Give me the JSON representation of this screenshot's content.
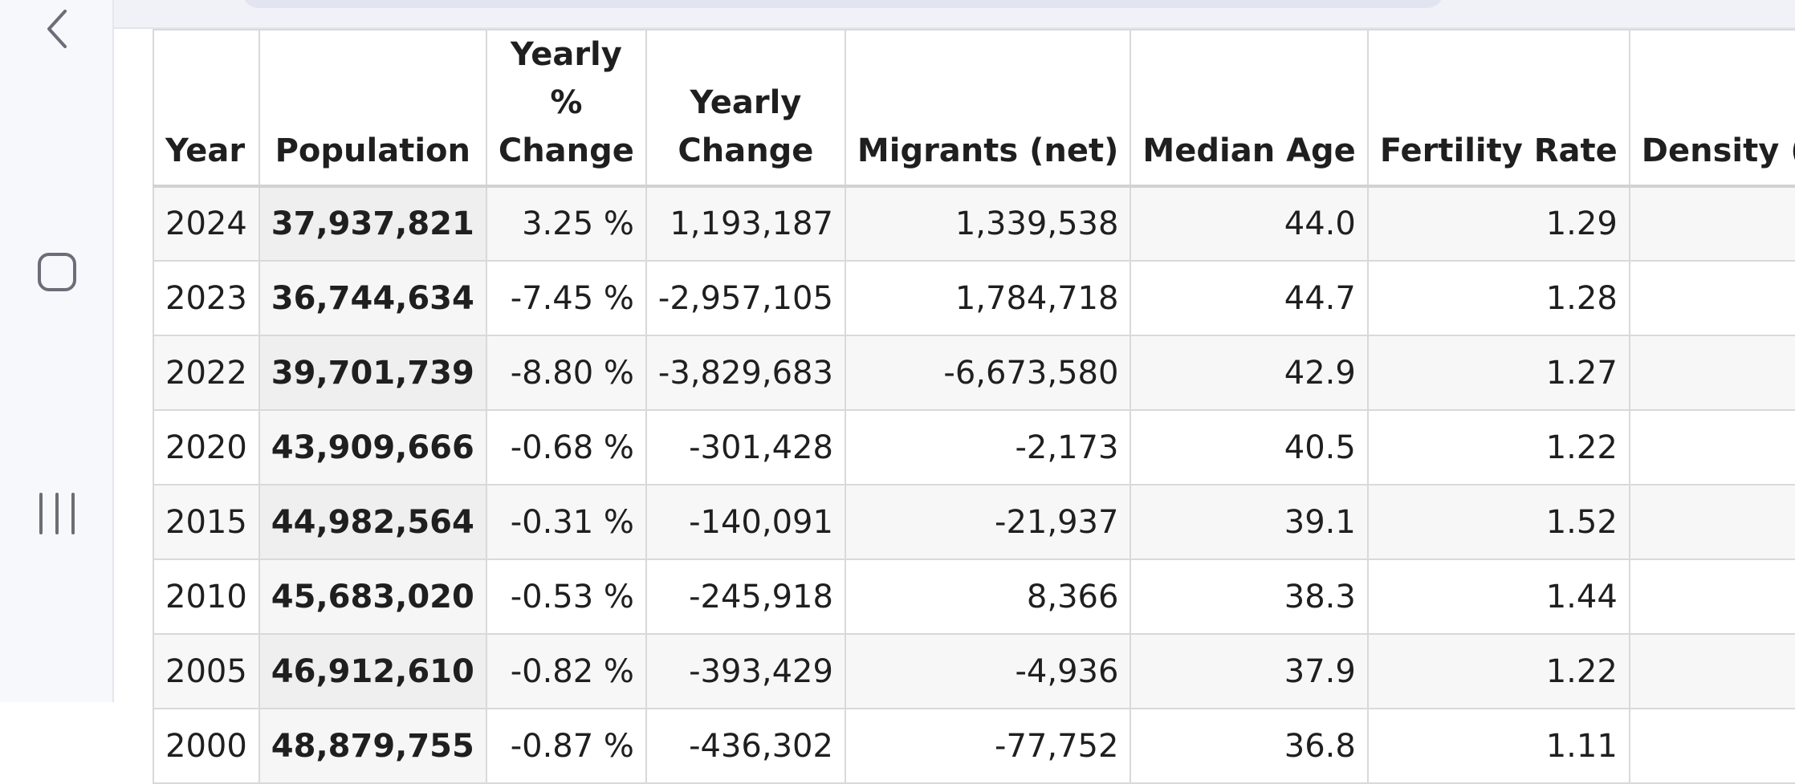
{
  "navigation": {
    "back_icon": "chevron-left-icon",
    "home_icon": "rounded-square-icon",
    "recents_icon": "three-bars-icon"
  },
  "table": {
    "columns": [
      "Year",
      "Population",
      "Yearly % Change",
      "Yearly Change",
      "Migrants (net)",
      "Median Age",
      "Fertility Rate",
      "Density (P/K"
    ],
    "rows": [
      [
        "2024",
        "37,937,821",
        "3.25 %",
        "1,193,187",
        "1,339,538",
        "44.0",
        "1.29",
        ""
      ],
      [
        "2023",
        "36,744,634",
        "-7.45 %",
        "-2,957,105",
        "1,784,718",
        "44.7",
        "1.28",
        ""
      ],
      [
        "2022",
        "39,701,739",
        "-8.80 %",
        "-3,829,683",
        "-6,673,580",
        "42.9",
        "1.27",
        ""
      ],
      [
        "2020",
        "43,909,666",
        "-0.68 %",
        "-301,428",
        "-2,173",
        "40.5",
        "1.22",
        ""
      ],
      [
        "2015",
        "44,982,564",
        "-0.31 %",
        "-140,091",
        "-21,937",
        "39.1",
        "1.52",
        ""
      ],
      [
        "2010",
        "45,683,020",
        "-0.53 %",
        "-245,918",
        "8,366",
        "38.3",
        "1.44",
        ""
      ],
      [
        "2005",
        "46,912,610",
        "-0.82 %",
        "-393,429",
        "-4,936",
        "37.9",
        "1.22",
        ""
      ],
      [
        "2000",
        "48,879,755",
        "-0.87 %",
        "-436,302",
        "-77,752",
        "36.8",
        "1.11",
        ""
      ]
    ]
  }
}
